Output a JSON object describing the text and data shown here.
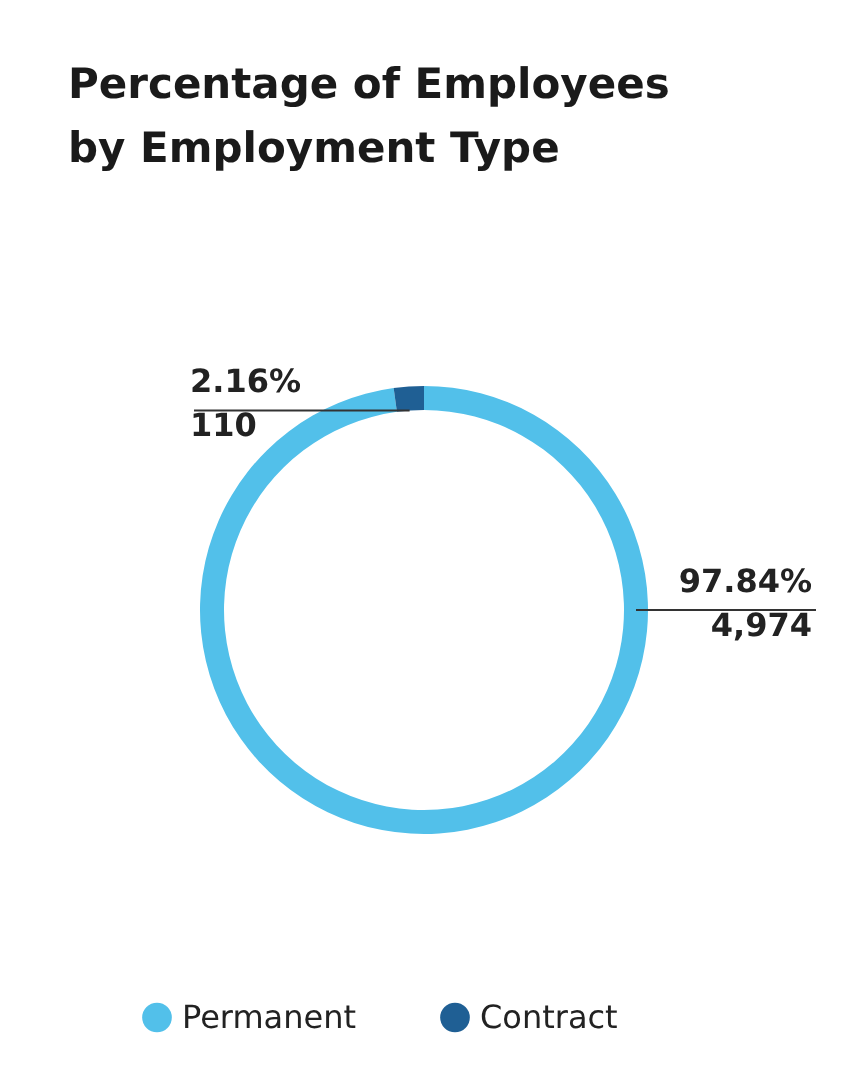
{
  "chart_data": {
    "type": "donut",
    "title": "Percentage of Employees\nby Employment Type",
    "categories": [
      "Permanent",
      "Contract"
    ],
    "values": [
      4974,
      110
    ],
    "colors": [
      "#52c0ea",
      "#1f5f94"
    ],
    "value_labels": [
      "97.84%\n4,974",
      "2.16%\n110"
    ],
    "legend": "bottom"
  }
}
